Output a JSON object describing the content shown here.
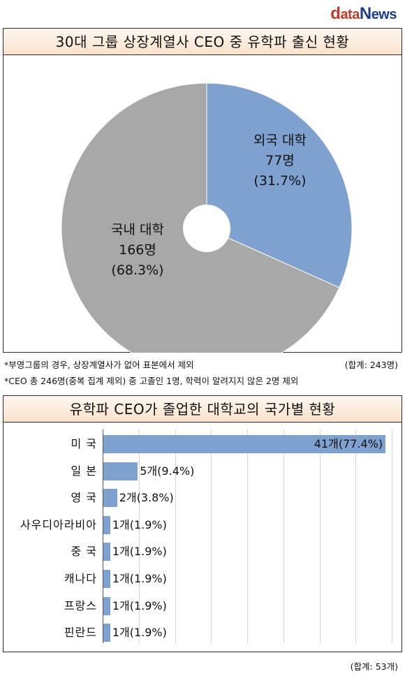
{
  "logo": {
    "d": "d",
    "ata": "ata",
    "n": "N",
    "ews": "ews"
  },
  "pie_panel": {
    "title": "30대 그룹 상장계열사 CEO 중 유학파 출신 현황"
  },
  "bar_panel": {
    "title": "유학파 CEO가 졸업한 대학교의 국가별 현황"
  },
  "notes": {
    "line1": "*부영그룹의 경우, 상장계열사가 없어 표본에서 제외",
    "total1": "(합계: 243명)",
    "line2": "*CEO 총 246명(중복 집계 제외) 중 고졸인 1명, 학력이 알려지지 않은 2명 제외",
    "total2": "(합계: 53개)"
  },
  "colors": {
    "accent": "#7ea1cf",
    "secondary": "#a8a8a8",
    "title_bg": "#fbe2cc"
  },
  "chart_data": [
    {
      "type": "pie",
      "title": "30대 그룹 상장계열사 CEO 중 유학파 출신 현황",
      "slices": [
        {
          "name": "외국 대학",
          "count": "77명",
          "pct": "(31.7%)",
          "value": 77,
          "color": "#7ea1cf"
        },
        {
          "name": "국내 대학",
          "count": "166명",
          "pct": "(68.3%)",
          "value": 166,
          "color": "#a8a8a8"
        }
      ],
      "hole": true
    },
    {
      "type": "bar",
      "orientation": "horizontal",
      "title": "유학파 CEO가 졸업한 대학교의 국가별 현황",
      "categories": [
        "미 국",
        "일 본",
        "영 국",
        "사우디아라비아",
        "중 국",
        "캐나다",
        "프랑스",
        "핀란드"
      ],
      "values": [
        41,
        5,
        2,
        1,
        1,
        1,
        1,
        1
      ],
      "labels": [
        "41개(77.4%)",
        "5개(9.4%)",
        "2개(3.8%)",
        "1개(1.9%)",
        "1개(1.9%)",
        "1개(1.9%)",
        "1개(1.9%)",
        "1개(1.9%)"
      ],
      "xlim": [
        0,
        42
      ],
      "grid": true
    }
  ]
}
